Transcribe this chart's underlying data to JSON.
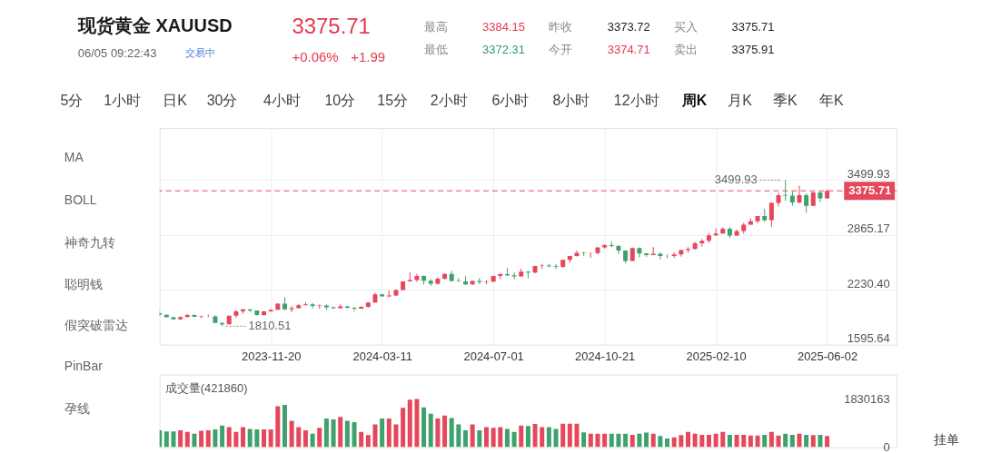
{
  "chart_data": [
    {
      "type": "other",
      "title": "现货黄金 XAUUSD",
      "annotations": [
        "06/05 09:22:43",
        "交易中",
        "3375.71",
        "+0.06%",
        "+1.99",
        "最高",
        "3384.15",
        "昨收",
        "3373.72",
        "买入",
        "3375.71",
        "最低",
        "3372.31",
        "今开",
        "3374.71",
        "卖出",
        "3375.91",
        "5分",
        "1小时",
        "日K",
        "30分",
        "4小时",
        "10分",
        "15分",
        "2小时",
        "6小时",
        "8小时",
        "12小时",
        "周K",
        "月K",
        "季K",
        "年K"
      ]
    },
    {
      "type": "other",
      "annotations": [
        "MA",
        "BOLL",
        "神奇九转",
        "聪明钱",
        "假突破雷达",
        "PinBar",
        "孕线"
      ]
    },
    {
      "type": "candlestick",
      "x": [
        "2023-07-31",
        "2023-08-07",
        "2023-08-14",
        "2023-08-21",
        "2023-08-28",
        "2023-09-04",
        "2023-09-11",
        "2023-09-18",
        "2023-09-25",
        "2023-10-02",
        "2023-10-09",
        "2023-10-16",
        "2023-10-23",
        "2023-10-30",
        "2023-11-06",
        "2023-11-13",
        "2023-11-20",
        "2023-11-27",
        "2023-12-04",
        "2023-12-11",
        "2023-12-18",
        "2023-12-25",
        "2024-01-01",
        "2024-01-08",
        "2024-01-15",
        "2024-01-22",
        "2024-01-29",
        "2024-02-05",
        "2024-02-12",
        "2024-02-19",
        "2024-02-26",
        "2024-03-04",
        "2024-03-11",
        "2024-03-18",
        "2024-03-25",
        "2024-04-01",
        "2024-04-08",
        "2024-04-15",
        "2024-04-22",
        "2024-04-29",
        "2024-05-06",
        "2024-05-13",
        "2024-05-20",
        "2024-05-27",
        "2024-06-03",
        "2024-06-10",
        "2024-06-17",
        "2024-06-24",
        "2024-07-01",
        "2024-07-08",
        "2024-07-15",
        "2024-07-22",
        "2024-07-29",
        "2024-08-05",
        "2024-08-12",
        "2024-08-19",
        "2024-08-26",
        "2024-09-02",
        "2024-09-09",
        "2024-09-16",
        "2024-09-23",
        "2024-09-30",
        "2024-10-07",
        "2024-10-14",
        "2024-10-21",
        "2024-10-28",
        "2024-11-04",
        "2024-11-11",
        "2024-11-18",
        "2024-11-25",
        "2024-12-02",
        "2024-12-09",
        "2024-12-16",
        "2024-12-23",
        "2024-12-30",
        "2025-01-06",
        "2025-01-13",
        "2025-01-20",
        "2025-01-27",
        "2025-02-03",
        "2025-02-10",
        "2025-02-17",
        "2025-02-24",
        "2025-03-03",
        "2025-03-10",
        "2025-03-17",
        "2025-03-24",
        "2025-03-31",
        "2025-04-07",
        "2025-04-14",
        "2025-04-21",
        "2025-04-28",
        "2025-05-05",
        "2025-05-12",
        "2025-05-19",
        "2025-05-26",
        "2025-06-02"
      ],
      "ohlc": [
        [
          1959,
          1987,
          1928,
          1943
        ],
        [
          1943,
          1948,
          1913,
          1914
        ],
        [
          1914,
          1918,
          1885,
          1889
        ],
        [
          1889,
          1924,
          1884,
          1915
        ],
        [
          1915,
          1953,
          1913,
          1940
        ],
        [
          1940,
          1946,
          1915,
          1919
        ],
        [
          1919,
          1932,
          1901,
          1924
        ],
        [
          1924,
          1947,
          1913,
          1925
        ],
        [
          1925,
          1936,
          1846,
          1848
        ],
        [
          1848,
          1853,
          1810.51,
          1833
        ],
        [
          1833,
          1932,
          1831,
          1932
        ],
        [
          1932,
          1997,
          1908,
          1981
        ],
        [
          1981,
          2009,
          1954,
          2006
        ],
        [
          2006,
          2009,
          1970,
          1992
        ],
        [
          1992,
          1993,
          1932,
          1940
        ],
        [
          1940,
          1988,
          1932,
          1981
        ],
        [
          1981,
          2008,
          1975,
          2001
        ],
        [
          2001,
          2075,
          1999,
          2072
        ],
        [
          2072,
          2146,
          1996,
          2004
        ],
        [
          2004,
          2047,
          1973,
          2019
        ],
        [
          2019,
          2070,
          2016,
          2053
        ],
        [
          2053,
          2088,
          2052,
          2063
        ],
        [
          2063,
          2078,
          2016,
          2045
        ],
        [
          2045,
          2062,
          2013,
          2049
        ],
        [
          2049,
          2062,
          2001,
          2029
        ],
        [
          2029,
          2036,
          2010,
          2018
        ],
        [
          2018,
          2065,
          2016,
          2039
        ],
        [
          2039,
          2044,
          2015,
          2024
        ],
        [
          2024,
          2031,
          1984,
          2013
        ],
        [
          2013,
          2041,
          2012,
          2035
        ],
        [
          2035,
          2088,
          2024,
          2083
        ],
        [
          2083,
          2195,
          2079,
          2179
        ],
        [
          2179,
          2185,
          2150,
          2155
        ],
        [
          2155,
          2222,
          2146,
          2165
        ],
        [
          2165,
          2236,
          2160,
          2229
        ],
        [
          2229,
          2330,
          2228,
          2329
        ],
        [
          2329,
          2431,
          2326,
          2344
        ],
        [
          2344,
          2417,
          2324,
          2392
        ],
        [
          2392,
          2396,
          2291,
          2337
        ],
        [
          2337,
          2354,
          2277,
          2301
        ],
        [
          2301,
          2378,
          2291,
          2360
        ],
        [
          2360,
          2422,
          2345,
          2415
        ],
        [
          2415,
          2450,
          2325,
          2334
        ],
        [
          2334,
          2364,
          2323,
          2327
        ],
        [
          2327,
          2388,
          2287,
          2293
        ],
        [
          2293,
          2342,
          2286,
          2333
        ],
        [
          2333,
          2368,
          2296,
          2321
        ],
        [
          2321,
          2339,
          2293,
          2326
        ],
        [
          2326,
          2393,
          2319,
          2392
        ],
        [
          2392,
          2424,
          2353,
          2411
        ],
        [
          2411,
          2483,
          2391,
          2400
        ],
        [
          2400,
          2432,
          2353,
          2386
        ],
        [
          2386,
          2477,
          2383,
          2442
        ],
        [
          2442,
          2447,
          2364,
          2431
        ],
        [
          2431,
          2509,
          2423,
          2507
        ],
        [
          2507,
          2532,
          2470,
          2512
        ],
        [
          2512,
          2531,
          2491,
          2503
        ],
        [
          2503,
          2529,
          2472,
          2497
        ],
        [
          2497,
          2581,
          2485,
          2577
        ],
        [
          2577,
          2625,
          2546,
          2621
        ],
        [
          2621,
          2685,
          2615,
          2658
        ],
        [
          2658,
          2670,
          2624,
          2653
        ],
        [
          2653,
          2657,
          2603,
          2657
        ],
        [
          2657,
          2722,
          2639,
          2721
        ],
        [
          2721,
          2758,
          2707,
          2747
        ],
        [
          2747,
          2790,
          2723,
          2737
        ],
        [
          2737,
          2750,
          2643,
          2685
        ],
        [
          2685,
          2688,
          2536,
          2563
        ],
        [
          2563,
          2721,
          2561,
          2715
        ],
        [
          2715,
          2721,
          2605,
          2650
        ],
        [
          2650,
          2658,
          2614,
          2633
        ],
        [
          2633,
          2726,
          2631,
          2648
        ],
        [
          2648,
          2664,
          2583,
          2622
        ],
        [
          2622,
          2640,
          2597,
          2621
        ],
        [
          2621,
          2665,
          2599,
          2640
        ],
        [
          2640,
          2697,
          2615,
          2690
        ],
        [
          2690,
          2726,
          2657,
          2703
        ],
        [
          2703,
          2786,
          2693,
          2770
        ],
        [
          2770,
          2817,
          2730,
          2798
        ],
        [
          2798,
          2886,
          2772,
          2861
        ],
        [
          2861,
          2942,
          2855,
          2883
        ],
        [
          2883,
          2955,
          2880,
          2936
        ],
        [
          2936,
          2956,
          2832,
          2858
        ],
        [
          2858,
          2930,
          2857,
          2910
        ],
        [
          2910,
          3005,
          2880,
          2984
        ],
        [
          2984,
          3057,
          2982,
          3023
        ],
        [
          3023,
          3087,
          3000,
          3084
        ],
        [
          3084,
          3167,
          3015,
          3037
        ],
        [
          3037,
          3245,
          2957,
          3237
        ],
        [
          3237,
          3357,
          3194,
          3326
        ],
        [
          3327,
          3499.93,
          3260,
          3319
        ],
        [
          3319,
          3368,
          3202,
          3240
        ],
        [
          3240,
          3435,
          3230,
          3325
        ],
        [
          3325,
          3346,
          3121,
          3203
        ],
        [
          3203,
          3366,
          3201,
          3357
        ],
        [
          3357,
          3365,
          3245,
          3289
        ],
        [
          3289,
          3392,
          3287,
          3375.71
        ]
      ],
      "colors": [
        "#3da26d",
        "#3da26d",
        "#3da26d",
        "#e5475b",
        "#e5475b",
        "#3da26d",
        "#e5475b",
        "#e5475b",
        "#3da26d",
        "#3da26d",
        "#e5475b",
        "#e5475b",
        "#e5475b",
        "#3da26d",
        "#3da26d",
        "#e5475b",
        "#e5475b",
        "#e5475b",
        "#3da26d",
        "#e5475b",
        "#e5475b",
        "#e5475b",
        "#3da26d",
        "#e5475b",
        "#3da26d",
        "#3da26d",
        "#e5475b",
        "#3da26d",
        "#3da26d",
        "#e5475b",
        "#e5475b",
        "#e5475b",
        "#3da26d",
        "#e5475b",
        "#e5475b",
        "#e5475b",
        "#e5475b",
        "#e5475b",
        "#3da26d",
        "#3da26d",
        "#e5475b",
        "#e5475b",
        "#3da26d",
        "#3da26d",
        "#3da26d",
        "#e5475b",
        "#3da26d",
        "#e5475b",
        "#e5475b",
        "#e5475b",
        "#3da26d",
        "#3da26d",
        "#e5475b",
        "#3da26d",
        "#e5475b",
        "#e5475b",
        "#3da26d",
        "#3da26d",
        "#e5475b",
        "#e5475b",
        "#e5475b",
        "#3da26d",
        "#e5475b",
        "#e5475b",
        "#e5475b",
        "#3da26d",
        "#3da26d",
        "#3da26d",
        "#e5475b",
        "#3da26d",
        "#3da26d",
        "#e5475b",
        "#3da26d",
        "#3da26d",
        "#e5475b",
        "#e5475b",
        "#e5475b",
        "#e5475b",
        "#e5475b",
        "#e5475b",
        "#e5475b",
        "#e5475b",
        "#3da26d",
        "#e5475b",
        "#e5475b",
        "#e5475b",
        "#e5475b",
        "#3da26d",
        "#e5475b",
        "#e5475b",
        "#3da26d",
        "#3da26d",
        "#e5475b",
        "#3da26d",
        "#e5475b",
        "#3da26d",
        "#e5475b"
      ],
      "xlim": [
        "2023-07-31",
        "2025-08-11"
      ],
      "xticks": [
        "2023-11-20",
        "2024-03-11",
        "2024-07-01",
        "2024-10-21",
        "2025-02-10",
        "2025-06-02"
      ],
      "ylim": [
        1595.64,
        4100
      ],
      "yticks": [
        3499.93,
        2865.17,
        {
          "value": 2230.4,
          "label": "2230.40"
        },
        1595.64
      ],
      "grid": true,
      "ref_lines": [
        {
          "axis": "y",
          "value": 3375.71,
          "label": "3375.71",
          "color": "#e5475b",
          "line_style": "dashed"
        }
      ],
      "annotations": [
        {
          "text": "3499.93",
          "x": "2025-04-21",
          "y": 3499.93
        },
        {
          "text": "1810.51",
          "x": "2023-10-02",
          "y": 1810.51
        }
      ]
    },
    {
      "type": "bar",
      "title": "成交量(421860)",
      "x": [
        "2023-07-31",
        "2023-08-07",
        "2023-08-14",
        "2023-08-21",
        "2023-08-28",
        "2023-09-04",
        "2023-09-11",
        "2023-09-18",
        "2023-09-25",
        "2023-10-02",
        "2023-10-09",
        "2023-10-16",
        "2023-10-23",
        "2023-10-30",
        "2023-11-06",
        "2023-11-13",
        "2023-11-20",
        "2023-11-27",
        "2023-12-04",
        "2023-12-11",
        "2023-12-18",
        "2023-12-25",
        "2024-01-01",
        "2024-01-08",
        "2024-01-15",
        "2024-01-22",
        "2024-01-29",
        "2024-02-05",
        "2024-02-12",
        "2024-02-19",
        "2024-02-26",
        "2024-03-04",
        "2024-03-11",
        "2024-03-18",
        "2024-03-25",
        "2024-04-01",
        "2024-04-08",
        "2024-04-15",
        "2024-04-22",
        "2024-04-29",
        "2024-05-06",
        "2024-05-13",
        "2024-05-20",
        "2024-05-27",
        "2024-06-03",
        "2024-06-10",
        "2024-06-17",
        "2024-06-24",
        "2024-07-01",
        "2024-07-08",
        "2024-07-15",
        "2024-07-22",
        "2024-07-29",
        "2024-08-05",
        "2024-08-12",
        "2024-08-19",
        "2024-08-26",
        "2024-09-02",
        "2024-09-09",
        "2024-09-16",
        "2024-09-23",
        "2024-09-30",
        "2024-10-07",
        "2024-10-14",
        "2024-10-21",
        "2024-10-28",
        "2024-11-04",
        "2024-11-11",
        "2024-11-18",
        "2024-11-25",
        "2024-12-02",
        "2024-12-09",
        "2024-12-16",
        "2024-12-23",
        "2024-12-30",
        "2025-01-06",
        "2025-01-13",
        "2025-01-20",
        "2025-01-27",
        "2025-02-03",
        "2025-02-10",
        "2025-02-17",
        "2025-02-24",
        "2025-03-03",
        "2025-03-10",
        "2025-03-17",
        "2025-03-24",
        "2025-03-31",
        "2025-04-07",
        "2025-04-14",
        "2025-04-21",
        "2025-04-28",
        "2025-05-05",
        "2025-05-12",
        "2025-05-19",
        "2025-05-26",
        "2025-06-02"
      ],
      "values": [
        640000,
        600000,
        600000,
        640000,
        580000,
        510000,
        620000,
        640000,
        670000,
        820000,
        760000,
        580000,
        760000,
        690000,
        670000,
        670000,
        670000,
        1550000,
        1600000,
        1000000,
        760000,
        640000,
        510000,
        730000,
        1090000,
        1050000,
        1150000,
        1000000,
        950000,
        580000,
        460000,
        860000,
        1090000,
        1090000,
        860000,
        1490000,
        1800000,
        1830163,
        1510000,
        1270000,
        1090000,
        1200000,
        1100000,
        860000,
        640000,
        860000,
        640000,
        760000,
        730000,
        760000,
        690000,
        580000,
        820000,
        800000,
        880000,
        760000,
        760000,
        690000,
        890000,
        890000,
        890000,
        560000,
        510000,
        510000,
        510000,
        510000,
        510000,
        510000,
        470000,
        510000,
        550000,
        510000,
        420000,
        330000,
        370000,
        460000,
        580000,
        510000,
        470000,
        470000,
        510000,
        580000,
        470000,
        470000,
        470000,
        440000,
        440000,
        470000,
        580000,
        440000,
        510000,
        470000,
        510000,
        470000,
        460000,
        470000,
        421860
      ],
      "colors": [
        "#3da26d",
        "#3da26d",
        "#3da26d",
        "#e5475b",
        "#e5475b",
        "#3da26d",
        "#e5475b",
        "#e5475b",
        "#3da26d",
        "#3da26d",
        "#e5475b",
        "#e5475b",
        "#e5475b",
        "#3da26d",
        "#3da26d",
        "#e5475b",
        "#e5475b",
        "#e5475b",
        "#3da26d",
        "#e5475b",
        "#e5475b",
        "#e5475b",
        "#3da26d",
        "#e5475b",
        "#3da26d",
        "#3da26d",
        "#e5475b",
        "#3da26d",
        "#3da26d",
        "#e5475b",
        "#e5475b",
        "#e5475b",
        "#3da26d",
        "#e5475b",
        "#e5475b",
        "#e5475b",
        "#e5475b",
        "#e5475b",
        "#3da26d",
        "#3da26d",
        "#e5475b",
        "#e5475b",
        "#3da26d",
        "#3da26d",
        "#3da26d",
        "#e5475b",
        "#3da26d",
        "#e5475b",
        "#e5475b",
        "#e5475b",
        "#3da26d",
        "#3da26d",
        "#e5475b",
        "#3da26d",
        "#e5475b",
        "#e5475b",
        "#3da26d",
        "#3da26d",
        "#e5475b",
        "#e5475b",
        "#e5475b",
        "#3da26d",
        "#e5475b",
        "#e5475b",
        "#e5475b",
        "#3da26d",
        "#3da26d",
        "#3da26d",
        "#e5475b",
        "#3da26d",
        "#3da26d",
        "#e5475b",
        "#3da26d",
        "#3da26d",
        "#e5475b",
        "#e5475b",
        "#e5475b",
        "#e5475b",
        "#e5475b",
        "#e5475b",
        "#e5475b",
        "#e5475b",
        "#3da26d",
        "#e5475b",
        "#e5475b",
        "#e5475b",
        "#e5475b",
        "#3da26d",
        "#e5475b",
        "#e5475b",
        "#3da26d",
        "#3da26d",
        "#e5475b",
        "#3da26d",
        "#e5475b",
        "#3da26d",
        "#e5475b"
      ],
      "xlim": [
        "2023-07-31",
        "2025-08-11"
      ],
      "ylim": [
        0,
        2750000
      ],
      "yticks": [
        1830163,
        0
      ],
      "tick_labels": "y"
    },
    {
      "type": "other",
      "annotations": [
        "挂单"
      ]
    }
  ]
}
